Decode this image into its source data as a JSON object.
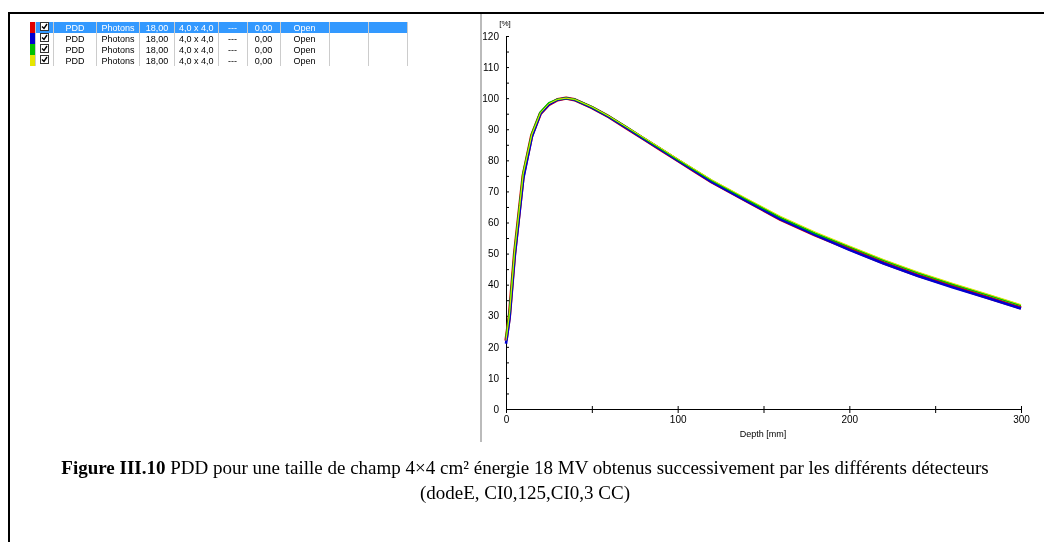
{
  "chart_data": {
    "type": "line",
    "title": "Figure III.10 PDD pour une taille de champ 4×4 cm² énergie 18 MV obtenus successivement par les différents détecteurs (dodeE, CI0,125,CI0,3 CC)",
    "xlabel": "Depth [mm]",
    "ylabel": "[%]",
    "x": [
      0,
      2,
      5,
      8,
      10,
      15,
      20,
      25,
      30,
      35,
      40,
      50,
      60,
      70,
      80,
      90,
      100,
      110,
      120,
      140,
      160,
      180,
      200,
      220,
      240,
      260,
      280,
      300
    ],
    "series": [
      {
        "color": "#e00000",
        "values": [
          22,
          30,
          50,
          65,
          75,
          88,
          95,
          98,
          99.5,
          100,
          99.5,
          97,
          94,
          90.5,
          87,
          83.5,
          80,
          76.5,
          73,
          67,
          61,
          56,
          51.5,
          47,
          43,
          39.5,
          36,
          32.5
        ]
      },
      {
        "color": "#0000d0",
        "values": [
          21,
          29,
          49,
          64,
          74,
          87.5,
          95,
          98,
          99.5,
          100,
          99.5,
          97,
          94,
          90.5,
          87,
          83.5,
          80,
          76.5,
          73,
          67,
          61,
          56,
          51.2,
          46.8,
          42.8,
          39.2,
          35.8,
          32.3
        ]
      },
      {
        "color": "#00c000",
        "values": [
          23,
          31,
          51,
          66,
          76,
          88.5,
          95.5,
          98.5,
          99.6,
          100,
          99.6,
          97.2,
          94.2,
          90.8,
          87.3,
          83.8,
          80.3,
          76.9,
          73.5,
          67.5,
          61.6,
          56.6,
          52.2,
          47.8,
          43.8,
          40.2,
          36.8,
          33.3
        ]
      },
      {
        "color": "#e6e600",
        "values": [
          22,
          30.5,
          50.5,
          65.5,
          75.5,
          88.2,
          95.2,
          98.2,
          99.6,
          100,
          99.6,
          97.2,
          94.2,
          90.8,
          87.4,
          84,
          80.5,
          77.1,
          73.7,
          67.8,
          62,
          57,
          52.5,
          48.1,
          44.1,
          40.5,
          37.1,
          33.6
        ]
      }
    ],
    "xlim": [
      0,
      300
    ],
    "xticks": [
      0,
      {
        "value": 50,
        "label": null
      },
      100,
      {
        "value": 150,
        "label": null
      },
      200,
      {
        "value": 250,
        "label": null
      },
      300
    ],
    "ylim": [
      0,
      120
    ],
    "yticks": [
      0,
      {
        "value": 5,
        "label": null
      },
      10,
      {
        "value": 15,
        "label": null
      },
      20,
      {
        "value": 25,
        "label": null
      },
      30,
      {
        "value": 35,
        "label": null
      },
      40,
      {
        "value": 45,
        "label": null
      },
      50,
      {
        "value": 55,
        "label": null
      },
      60,
      {
        "value": 65,
        "label": null
      },
      70,
      {
        "value": 75,
        "label": null
      },
      80,
      {
        "value": 85,
        "label": null
      },
      90,
      {
        "value": 95,
        "label": null
      },
      100,
      {
        "value": 105,
        "label": null
      },
      110,
      {
        "value": 115,
        "label": null
      },
      120
    ],
    "grid": false,
    "annotations": [
      "PDD\tPhotons\t18,00\t4,0 x 4,0\t---\t0,00\tOpen",
      "PDD\tPhotons\t18,00\t4,0 x 4,0\t---\t0,00\tOpen",
      "PDD\tPhotons\t18,00\t4,0 x 4,0\t---\t0,00\tOpen",
      "PDD\tPhotons\t18,00\t4,0 x 4,0\t---\t0,00\tOpen"
    ]
  }
}
